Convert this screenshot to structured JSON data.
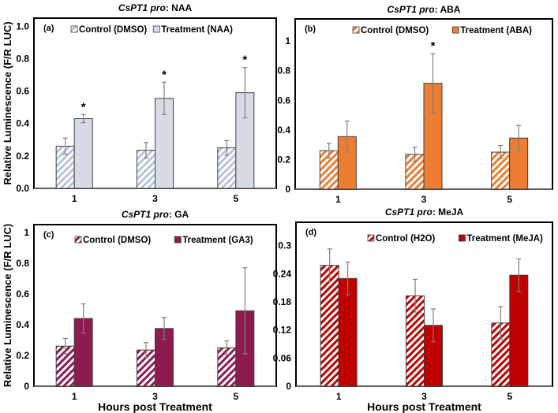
{
  "chart_data": [
    {
      "type": "bar",
      "panel_label": "(a)",
      "title_italic": "CsPT1 pro",
      "title_rest": ": NAA",
      "categories": [
        "1",
        "3",
        "5"
      ],
      "ylabel": "Relative Luminescence (F/R LUC)",
      "xlabel": "",
      "ylim": [
        0,
        1.05
      ],
      "yticks": [
        "0.0",
        "0.2",
        "0.4",
        "0.6",
        "0.8",
        "1.0"
      ],
      "ytick_values": [
        0,
        0.2,
        0.4,
        0.6,
        0.8,
        1.0
      ],
      "series": [
        {
          "name": "Control (DMSO)",
          "values": [
            0.26,
            0.235,
            0.25
          ],
          "errors": [
            0.05,
            0.048,
            0.045
          ],
          "color": "#c5cfe0",
          "hatched": true
        },
        {
          "name": "Treatment (NAA)",
          "values": [
            0.43,
            0.555,
            0.59
          ],
          "errors": [
            0.025,
            0.1,
            0.155
          ],
          "color": "#d6dce5",
          "hatched": false
        }
      ],
      "significance": [
        {
          "category": "1",
          "series": 1,
          "mark": "*"
        },
        {
          "category": "3",
          "series": 1,
          "mark": "*"
        },
        {
          "category": "5",
          "series": 1,
          "mark": "*"
        }
      ]
    },
    {
      "type": "bar",
      "panel_label": "(b)",
      "title_italic": "CsPT1 pro",
      "title_rest": ": ABA",
      "categories": [
        "1",
        "3",
        "5"
      ],
      "ylabel": "",
      "xlabel": "",
      "ylim": [
        0,
        1.15
      ],
      "yticks": [
        "0",
        "0.2",
        "0.4",
        "0.6",
        "0.8",
        "1"
      ],
      "ytick_values": [
        0,
        0.2,
        0.4,
        0.6,
        0.8,
        1.0
      ],
      "series": [
        {
          "name": "Control (DMSO)",
          "values": [
            0.26,
            0.235,
            0.25
          ],
          "errors": [
            0.05,
            0.048,
            0.045
          ],
          "color": "#ed7d31",
          "hatched": true
        },
        {
          "name": "Treatment (ABA)",
          "values": [
            0.355,
            0.715,
            0.345
          ],
          "errors": [
            0.105,
            0.2,
            0.085
          ],
          "color": "#ed7d31",
          "hatched": false
        }
      ],
      "significance": [
        {
          "category": "3",
          "series": 1,
          "mark": "*"
        }
      ]
    },
    {
      "type": "bar",
      "panel_label": "(c)",
      "title_italic": "CsPT1 pro",
      "title_rest": ": GA",
      "categories": [
        "1",
        "3",
        "5"
      ],
      "ylabel": "Relative Luminescence (F/R LUC)",
      "xlabel": "Hours post Treatment",
      "ylim": [
        0,
        1.05
      ],
      "yticks": [
        "0",
        "0.2",
        "0.4",
        "0.6",
        "0.8",
        "1"
      ],
      "ytick_values": [
        0,
        0.2,
        0.4,
        0.6,
        0.8,
        1.0
      ],
      "series": [
        {
          "name": "Control (DMSO)",
          "values": [
            0.26,
            0.235,
            0.25
          ],
          "errors": [
            0.05,
            0.048,
            0.045
          ],
          "color": "#8e1b4f",
          "hatched": true
        },
        {
          "name": "Treatment (GA3)",
          "values": [
            0.44,
            0.375,
            0.49
          ],
          "errors": [
            0.095,
            0.072,
            0.28
          ],
          "color": "#8e1b4f",
          "hatched": false
        }
      ],
      "significance": []
    },
    {
      "type": "bar",
      "panel_label": "(d)",
      "title_italic": "CsPT1 pro",
      "title_rest": ": MeJA",
      "categories": [
        "1",
        "3",
        "5"
      ],
      "ylabel": "",
      "xlabel": "Hours post Treatment",
      "ylim": [
        0,
        0.35
      ],
      "yticks": [
        "0",
        "0.06",
        "0.12",
        "0.18",
        "0.24",
        "0.3"
      ],
      "ytick_values": [
        0,
        0.06,
        0.12,
        0.18,
        0.24,
        0.3
      ],
      "series": [
        {
          "name": "Control (H2O)",
          "values": [
            0.258,
            0.193,
            0.135
          ],
          "errors": [
            0.035,
            0.035,
            0.035
          ],
          "color": "#c00000",
          "hatched": true
        },
        {
          "name": "Treatment (MeJA)",
          "values": [
            0.23,
            0.13,
            0.237
          ],
          "errors": [
            0.035,
            0.035,
            0.035
          ],
          "color": "#c00000",
          "hatched": false
        }
      ],
      "significance": []
    }
  ]
}
